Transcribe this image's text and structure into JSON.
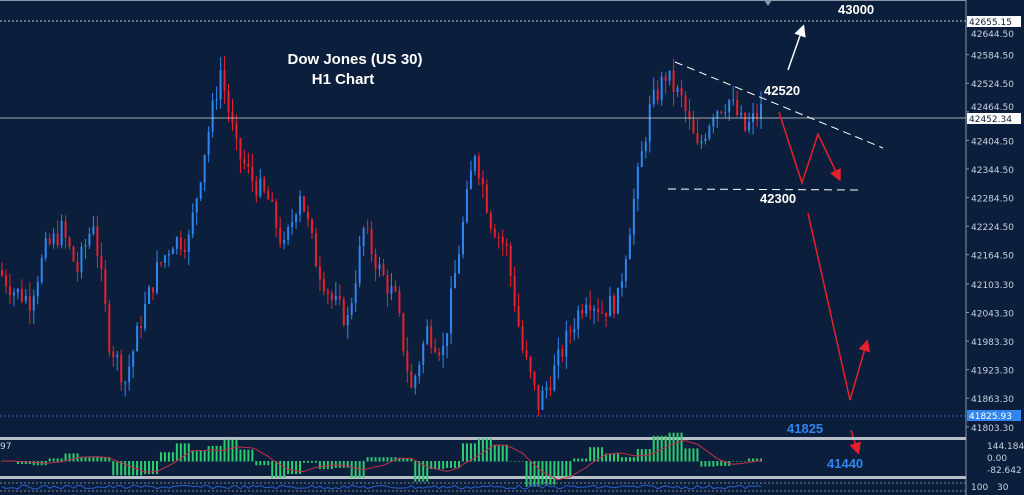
{
  "chart_data": {
    "type": "candlestick",
    "title": "Dow Jones (US 30)",
    "subtitle": "H1 Chart",
    "y_ticks": [
      "42644.50",
      "42584.50",
      "42524.50",
      "42464.50",
      "42404.50",
      "42344.50",
      "42284.50",
      "42224.50",
      "42164.50",
      "42103.30",
      "42043.30",
      "41983.30",
      "41923.30",
      "41863.30",
      "41803.30"
    ],
    "ylim": [
      41780,
      42700
    ],
    "price_labels": {
      "high_line": "42655.15",
      "current": "42452.34",
      "low_line": "41825.93"
    },
    "closes": [
      42132,
      42090,
      42070,
      42175,
      42216,
      42132,
      42237,
      41985,
      41900,
      42027,
      42132,
      42195,
      42195,
      42384,
      42552,
      42384,
      42321,
      42279,
      42175,
      42300,
      42153,
      42070,
      42027,
      42216,
      42132,
      42070,
      41880,
      42006,
      41964,
      42175,
      42384,
      42237,
      42175,
      41964,
      41850,
      41922,
      42006,
      42080,
      42048,
      42070,
      42279,
      42468,
      42542,
      42489,
      42384,
      42468,
      42489,
      42426,
      42468
    ],
    "annotations": {
      "target_up": "43000",
      "resistance": "42520",
      "support": "42300",
      "low": "41825",
      "target_down": "41440"
    },
    "colors": {
      "up": "#2f86f0",
      "down": "#e8202b",
      "background": "#0b1e3b",
      "low_label": "#2f86f0"
    },
    "indicator": {
      "label": "97",
      "ticks": [
        "144.184",
        "0.00",
        "-82.642"
      ],
      "colors": {
        "histogram": "#2ecc71",
        "signal": "#c0304a"
      }
    },
    "oscillator": {
      "ticks": [
        "100",
        "30"
      ],
      "color": "#2a5fd0"
    }
  }
}
